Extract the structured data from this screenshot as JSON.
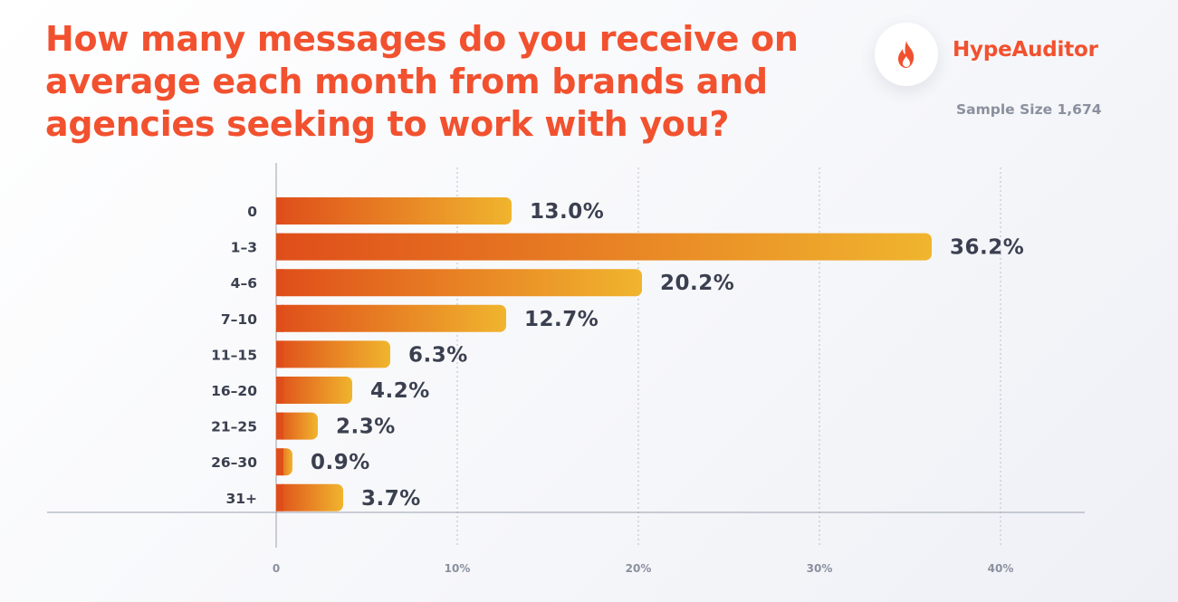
{
  "title": "How many messages do you receive on average each month from brands and agencies seeking to work with you?",
  "brand": {
    "name": "HypeAuditor",
    "icon": "flame-icon",
    "color": "#f2512f"
  },
  "sample_size": "Sample Size 1,674",
  "chart_data": {
    "type": "bar",
    "orientation": "horizontal",
    "categories": [
      "0",
      "1–3",
      "4–6",
      "7–10",
      "11–15",
      "16–20",
      "21–25",
      "26–30",
      "31+"
    ],
    "values": [
      13.0,
      36.2,
      20.2,
      12.7,
      6.3,
      4.2,
      2.3,
      0.9,
      3.7
    ],
    "value_labels": [
      "13.0%",
      "36.2%",
      "20.2%",
      "12.7%",
      "6.3%",
      "4.2%",
      "2.3%",
      "0.9%",
      "3.7%"
    ],
    "xticks": [
      0,
      10,
      20,
      30,
      40
    ],
    "xtick_labels": [
      "0",
      "10%",
      "20%",
      "30%",
      "40%"
    ],
    "xlim": [
      0,
      44
    ],
    "grid": "dashed vertical",
    "bar_gradient": [
      "#df4e1a",
      "#f0b52e"
    ],
    "label_color": "#3b4050",
    "axis_color": "#9aa0ad"
  }
}
